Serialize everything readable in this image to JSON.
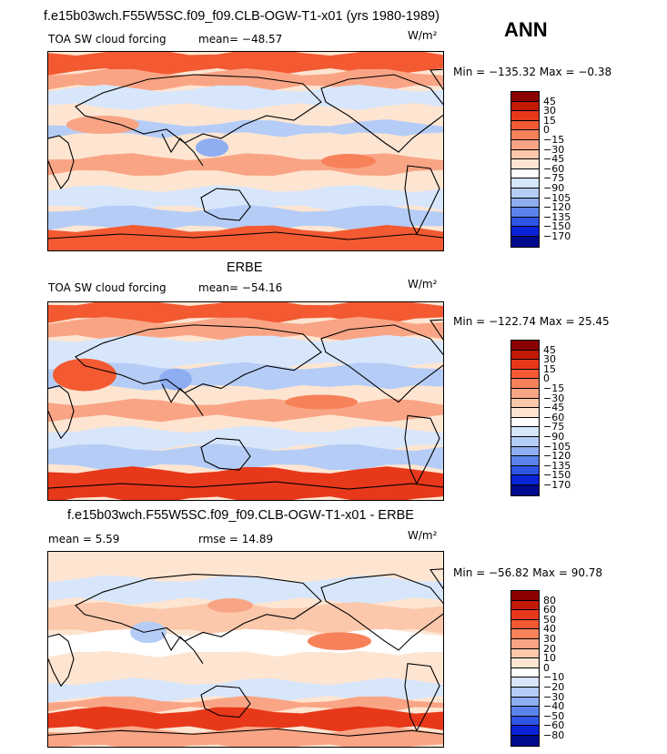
{
  "header": {
    "title": "f.e15b03wch.F55W5SC.f09_f09.CLB-OGW-T1-x01 (yrs 1980-1989)",
    "season": "ANN"
  },
  "panels": [
    {
      "id": "model",
      "heading": "",
      "left_label": "TOA SW cloud forcing",
      "center_label": "mean= −48.57",
      "units": "W/m²",
      "minmax": "Min = −135.32 Max =  −0.38",
      "legend_values": [
        "45",
        "30",
        "15",
        "0",
        "−15",
        "−30",
        "−45",
        "−60",
        "−75",
        "−90",
        "−105",
        "−120",
        "−135",
        "−150",
        "−170"
      ],
      "legend_colors": [
        "#8b0000",
        "#c31a05",
        "#e8381a",
        "#f35a32",
        "#f7825a",
        "#f9a585",
        "#fbc8ab",
        "#fde5d2",
        "#ffffff",
        "#d7e6fb",
        "#b5cdf6",
        "#8eaef1",
        "#5c83ec",
        "#2e55e6",
        "#0a23d7",
        "#000a8c"
      ]
    },
    {
      "id": "obs",
      "heading": "ERBE",
      "left_label": "TOA SW cloud forcing",
      "center_label": "mean= −54.16",
      "units": "W/m²",
      "minmax": "Min = −122.74 Max =  25.45",
      "legend_values": [
        "45",
        "30",
        "15",
        "0",
        "−15",
        "−30",
        "−45",
        "−60",
        "−75",
        "−90",
        "−105",
        "−120",
        "−135",
        "−150",
        "−170"
      ],
      "legend_colors": [
        "#8b0000",
        "#c31a05",
        "#e8381a",
        "#f35a32",
        "#f7825a",
        "#f9a585",
        "#fbc8ab",
        "#fde5d2",
        "#ffffff",
        "#d7e6fb",
        "#b5cdf6",
        "#8eaef1",
        "#5c83ec",
        "#2e55e6",
        "#0a23d7",
        "#000a8c"
      ]
    },
    {
      "id": "diff",
      "heading": "f.e15b03wch.F55W5SC.f09_f09.CLB-OGW-T1-x01 - ERBE",
      "left_label": "mean =   5.59",
      "center_label": "rmse =  14.89",
      "units": "W/m²",
      "minmax": "Min = −56.82 Max =  90.78",
      "legend_values": [
        "80",
        "60",
        "50",
        "40",
        "30",
        "20",
        "10",
        "0",
        "−10",
        "−20",
        "−30",
        "−40",
        "−50",
        "−60",
        "−80"
      ],
      "legend_colors": [
        "#8b0000",
        "#c31a05",
        "#e8381a",
        "#f35a32",
        "#f7825a",
        "#f9a585",
        "#fbc8ab",
        "#fde5d2",
        "#ffffff",
        "#d7e6fb",
        "#b5cdf6",
        "#8eaef1",
        "#5c83ec",
        "#2e55e6",
        "#0a23d7",
        "#000a8c"
      ]
    }
  ]
}
